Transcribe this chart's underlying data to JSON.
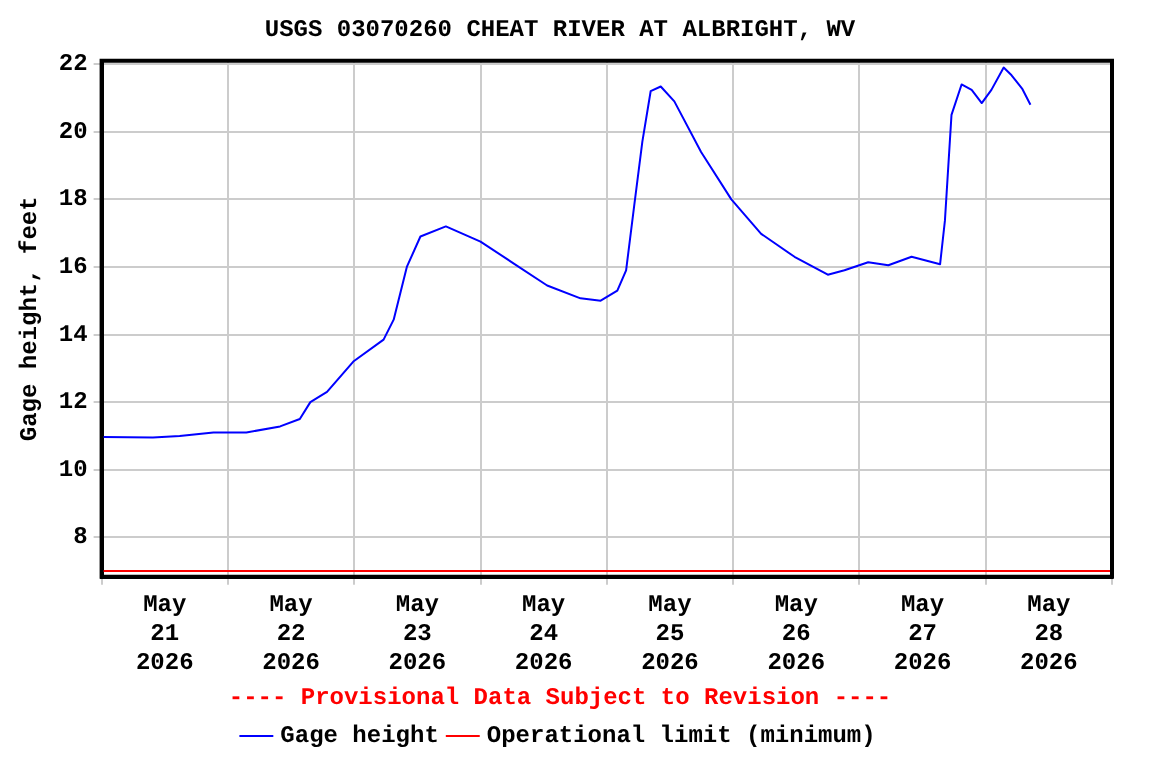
{
  "chart_data": {
    "type": "line",
    "title": "USGS 03070260 CHEAT RIVER AT ALBRIGHT, WV",
    "ylabel": "Gage height, feet",
    "annotations": [
      "---- Provisional Data Subject to Revision ----"
    ],
    "xlim": [
      "2026-05-21T00:00",
      "2026-05-29T00:00"
    ],
    "xticks": [
      {
        "value": "2026-05-21T00:00",
        "label": null
      },
      {
        "value": "2026-05-21T12:00",
        "label": "May 21 2026"
      },
      {
        "value": "2026-05-22T00:00",
        "label": null
      },
      {
        "value": "2026-05-22T12:00",
        "label": "May 22 2026"
      },
      {
        "value": "2026-05-23T00:00",
        "label": null
      },
      {
        "value": "2026-05-23T12:00",
        "label": "May 23 2026"
      },
      {
        "value": "2026-05-24T00:00",
        "label": null
      },
      {
        "value": "2026-05-24T12:00",
        "label": "May 24 2026"
      },
      {
        "value": "2026-05-25T00:00",
        "label": null
      },
      {
        "value": "2026-05-25T12:00",
        "label": "May 25 2026"
      },
      {
        "value": "2026-05-26T00:00",
        "label": null
      },
      {
        "value": "2026-05-26T12:00",
        "label": "May 26 2026"
      },
      {
        "value": "2026-05-27T00:00",
        "label": null
      },
      {
        "value": "2026-05-27T12:00",
        "label": "May 27 2026"
      },
      {
        "value": "2026-05-28T00:00",
        "label": null
      },
      {
        "value": "2026-05-28T12:00",
        "label": "May 28 2026"
      },
      {
        "value": "2026-05-29T00:00",
        "label": null
      }
    ],
    "ylim": [
      6.83,
      22.1
    ],
    "yticks": [
      8,
      10,
      12,
      14,
      16,
      18,
      20,
      22
    ],
    "grid": true,
    "legend": "bottom",
    "marker": "none",
    "series": [
      {
        "name": "Gage height",
        "color": "#0000ff",
        "x": [
          "2026-05-21T00:15",
          "2026-05-21T09:45",
          "2026-05-21T14:50",
          "2026-05-21T21:15",
          "2026-05-22T03:30",
          "2026-05-22T09:55",
          "2026-05-22T13:40",
          "2026-05-22T15:40",
          "2026-05-22T18:50",
          "2026-05-22T23:50",
          "2026-05-23T05:35",
          "2026-05-23T07:30",
          "2026-05-23T10:00",
          "2026-05-23T12:35",
          "2026-05-23T17:25",
          "2026-05-24T00:00",
          "2026-05-24T06:20",
          "2026-05-24T12:40",
          "2026-05-24T19:00",
          "2026-05-24T22:50",
          "2026-05-25T02:00",
          "2026-05-25T03:40",
          "2026-05-25T05:10",
          "2026-05-25T06:45",
          "2026-05-25T08:20",
          "2026-05-25T10:15",
          "2026-05-25T12:50",
          "2026-05-25T17:55",
          "2026-05-25T23:40",
          "2026-05-26T05:20",
          "2026-05-26T11:40",
          "2026-05-26T18:00",
          "2026-05-26T21:10",
          "2026-05-27T01:40",
          "2026-05-27T05:30",
          "2026-05-27T09:55",
          "2026-05-27T15:20",
          "2026-05-27T16:15",
          "2026-05-27T17:30",
          "2026-05-27T19:25",
          "2026-05-27T21:20",
          "2026-05-27T23:15",
          "2026-05-28T01:05",
          "2026-05-28T03:25",
          "2026-05-28T04:55",
          "2026-05-28T06:55",
          "2026-05-28T08:30"
        ],
        "values": [
          10.97,
          10.95,
          11.0,
          11.1,
          11.1,
          11.28,
          11.5,
          12.0,
          12.3,
          13.2,
          13.85,
          14.44,
          16.0,
          16.9,
          17.2,
          16.75,
          16.1,
          15.45,
          15.07,
          15.0,
          15.3,
          15.9,
          17.76,
          19.7,
          21.2,
          21.34,
          20.9,
          19.4,
          18.0,
          16.98,
          16.3,
          15.77,
          15.9,
          16.14,
          16.05,
          16.3,
          16.08,
          17.37,
          20.5,
          21.4,
          21.24,
          20.85,
          21.24,
          21.9,
          21.67,
          21.28,
          20.8
        ]
      },
      {
        "name": "Operational limit (minimum)",
        "color": "#ff0000",
        "x": [
          "2026-05-21T00:00",
          "2026-05-29T00:00"
        ],
        "values": [
          7.0,
          7.0
        ]
      }
    ]
  }
}
